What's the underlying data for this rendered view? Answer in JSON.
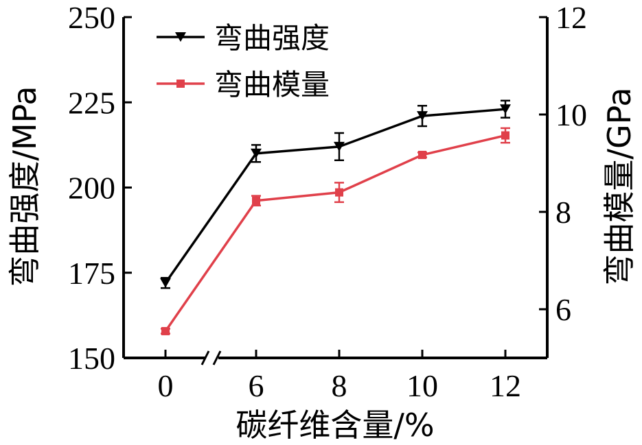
{
  "chart_data": {
    "type": "line",
    "x": [
      "0",
      "6",
      "8",
      "10",
      "12"
    ],
    "xlabel": "碳纤维含量/%",
    "ylabel_left": "弯曲强度/MPa",
    "ylabel_right": "弯曲模量/GPa",
    "ylim_left": [
      150,
      250
    ],
    "yticks_left": [
      "150",
      "175",
      "200",
      "225",
      "250"
    ],
    "ylim_right": [
      5,
      12
    ],
    "yticks_right": [
      "6",
      "8",
      "10",
      "12"
    ],
    "axis_break": "between 0 and 6",
    "legend_position": "top-left",
    "series": [
      {
        "name": "弯曲强度",
        "axis": "left",
        "color": "#000000",
        "marker": "triangle-down",
        "values": [
          172,
          210,
          212,
          221,
          223
        ],
        "errors": [
          1.5,
          2.5,
          4,
          3,
          2.5
        ]
      },
      {
        "name": "弯曲模量",
        "axis": "right",
        "color": "#e0404a",
        "marker": "square",
        "values": [
          5.55,
          8.23,
          8.4,
          9.17,
          9.57
        ],
        "errors": [
          0.05,
          0.1,
          0.2,
          0.05,
          0.15
        ]
      }
    ]
  }
}
